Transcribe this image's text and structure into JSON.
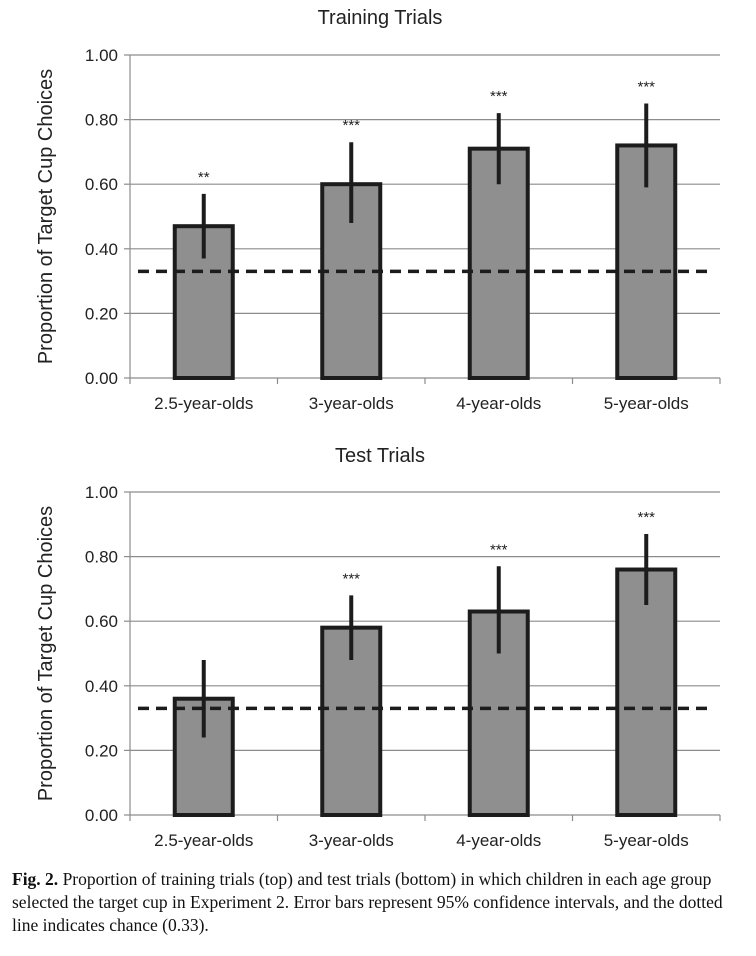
{
  "chart_data": [
    {
      "type": "bar",
      "title": "Training Trials",
      "ylabel": "Proportion of Target Cup Choices",
      "xlabel": "",
      "ylim": [
        0,
        1
      ],
      "yticks": [
        "0.00",
        "0.20",
        "0.40",
        "0.60",
        "0.80",
        "1.00"
      ],
      "categories": [
        "2.5-year-olds",
        "3-year-olds",
        "4-year-olds",
        "5-year-olds"
      ],
      "values": [
        0.47,
        0.6,
        0.71,
        0.72
      ],
      "error_low": [
        0.37,
        0.48,
        0.6,
        0.59
      ],
      "error_high": [
        0.57,
        0.73,
        0.82,
        0.85
      ],
      "significance": [
        "**",
        "***",
        "***",
        "***"
      ],
      "chance": 0.33,
      "grid": true
    },
    {
      "type": "bar",
      "title": "Test Trials",
      "ylabel": "Proportion of Target Cup Choices",
      "xlabel": "",
      "ylim": [
        0,
        1
      ],
      "yticks": [
        "0.00",
        "0.20",
        "0.40",
        "0.60",
        "0.80",
        "1.00"
      ],
      "categories": [
        "2.5-year-olds",
        "3-year-olds",
        "4-year-olds",
        "5-year-olds"
      ],
      "values": [
        0.36,
        0.58,
        0.63,
        0.76
      ],
      "error_low": [
        0.24,
        0.48,
        0.5,
        0.65
      ],
      "error_high": [
        0.48,
        0.68,
        0.77,
        0.87
      ],
      "significance": [
        "",
        "***",
        "***",
        "***"
      ],
      "chance": 0.33,
      "grid": true
    }
  ],
  "caption": {
    "label": "Fig. 2.",
    "text": "Proportion of training trials (top) and test trials (bottom) in which children in each age group selected the target cup in Experiment 2. Error bars represent 95% confidence intervals, and the dotted line indicates chance (0.33)."
  }
}
